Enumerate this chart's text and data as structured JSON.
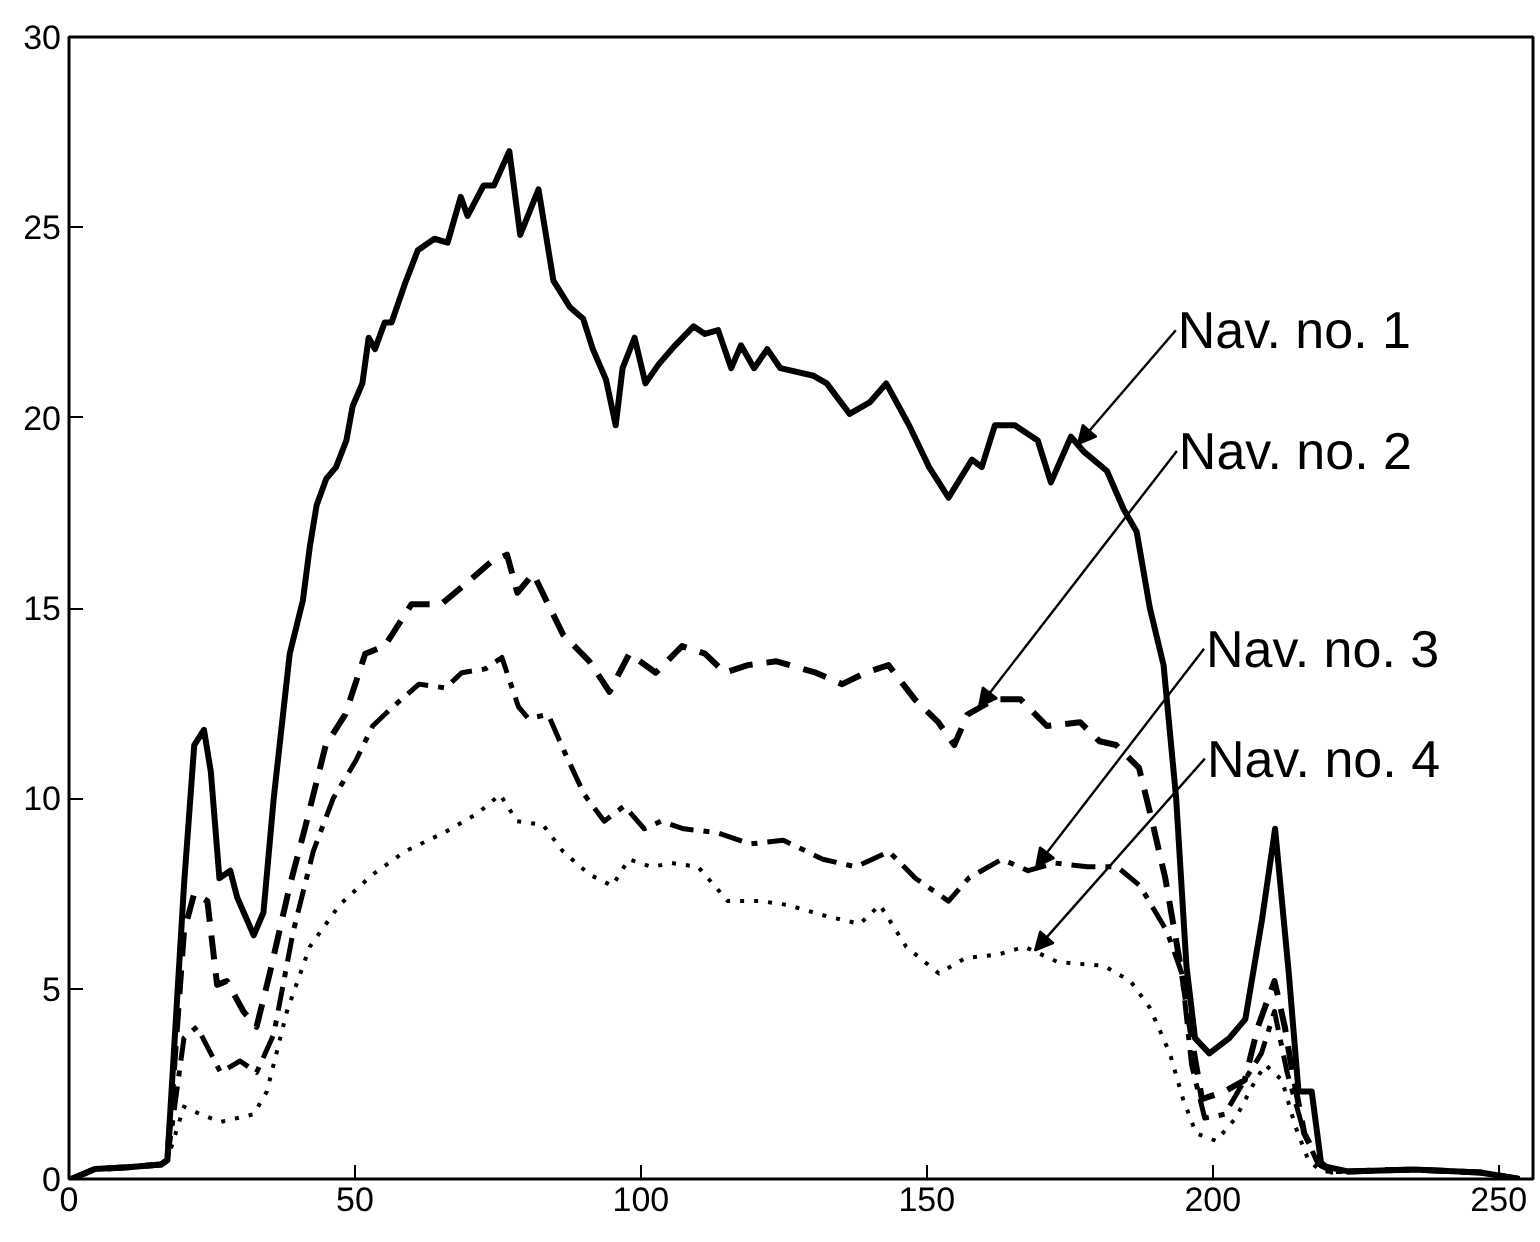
{
  "chart_data": {
    "type": "line",
    "xlim": [
      0,
      256
    ],
    "ylim": [
      0,
      30
    ],
    "xticks": [
      0,
      50,
      100,
      150,
      200,
      250
    ],
    "yticks": [
      0,
      5,
      10,
      15,
      20,
      25,
      30
    ],
    "grid": false,
    "series": [
      {
        "color": "#000000",
        "line_style": "solid",
        "x": [
          0.4,
          4.5,
          10.3,
          16.1,
          17.2,
          20.1,
          21.9,
          23.6,
          24.8,
          26.3,
          28.2,
          29.4,
          32.3,
          34.0,
          35.8,
          38.6,
          40.9,
          42.1,
          43.3,
          45.0,
          46.7,
          48.5,
          49.6,
          51.3,
          52.4,
          53.5,
          55.2,
          56.4,
          58.7,
          61.0,
          63.9,
          66.2,
          68.5,
          69.7,
          72.5,
          74.3,
          77.0,
          78.9,
          82.1,
          84.7,
          87.6,
          89.9,
          91.6,
          93.9,
          95.6,
          96.8,
          98.9,
          100.8,
          103.1,
          106.0,
          109.2,
          111.2,
          113.5,
          115.8,
          117.5,
          119.8,
          122.1,
          124.4,
          130.2,
          132.5,
          136.5,
          140.0,
          142.9,
          146.9,
          150.4,
          153.8,
          157.9,
          159.6,
          161.9,
          165.4,
          169.4,
          171.7,
          175.2,
          177.5,
          181.5,
          184.4,
          186.7,
          189.0,
          191.4,
          193.6,
          195.4,
          196.9,
          199.4,
          202.9,
          205.7,
          208.6,
          210.9,
          213.3,
          215.0,
          217.3,
          219.0,
          223.6,
          235.2,
          246.8,
          253.6
        ],
        "values": [
          0,
          0.26,
          0.31,
          0.38,
          0.5,
          7.7,
          11.4,
          11.8,
          10.7,
          7.9,
          8.1,
          7.4,
          6.4,
          7.0,
          10.0,
          13.8,
          15.2,
          16.6,
          17.7,
          18.4,
          18.7,
          19.4,
          20.3,
          20.9,
          22.1,
          21.8,
          22.5,
          22.5,
          23.5,
          24.4,
          24.7,
          24.6,
          25.8,
          25.3,
          26.1,
          26.1,
          27.0,
          24.8,
          26.0,
          23.6,
          22.9,
          22.6,
          21.8,
          21.0,
          19.8,
          21.3,
          22.1,
          20.9,
          21.4,
          21.9,
          22.4,
          22.2,
          22.3,
          21.3,
          21.9,
          21.3,
          21.8,
          21.3,
          21.1,
          20.9,
          20.1,
          20.4,
          20.9,
          19.8,
          18.7,
          17.9,
          18.9,
          18.7,
          19.8,
          19.8,
          19.4,
          18.3,
          19.5,
          19.1,
          18.6,
          17.6,
          17.0,
          15.0,
          13.5,
          10.0,
          5.6,
          3.7,
          3.3,
          3.7,
          4.2,
          6.8,
          9.2,
          5.4,
          2.3,
          2.3,
          0.35,
          0.2,
          0.25,
          0.17,
          0
        ]
      },
      {
        "color": "#000000",
        "line_style": "dashed",
        "x": [
          0.4,
          4.5,
          10.3,
          16.1,
          17.2,
          20.1,
          21.9,
          24.2,
          25.9,
          27.6,
          30.5,
          32.8,
          35.1,
          38.6,
          41.4,
          44.9,
          48.3,
          51.8,
          55.2,
          59.9,
          65.1,
          69.1,
          73.7,
          76.6,
          78.4,
          81.2,
          84.1,
          86.4,
          91.0,
          94.5,
          98.0,
          102.6,
          107.2,
          111.2,
          114.7,
          118.7,
          123.7,
          130.6,
          135.2,
          139.3,
          143.3,
          147.9,
          152.0,
          154.8,
          157.1,
          161.8,
          166.4,
          171.0,
          176.8,
          180.2,
          183.1,
          187.1,
          189.4,
          191.7,
          194.6,
          196.3,
          198.1,
          202.1,
          205.6,
          207.9,
          210.8,
          212.6,
          213.7,
          216.0,
          218.4,
          220.7,
          223.6,
          235.2,
          246.8,
          253.6
        ],
        "values": [
          0,
          0.26,
          0.31,
          0.38,
          0.5,
          6.5,
          7.5,
          7.3,
          5.1,
          5.2,
          4.4,
          4.0,
          5.4,
          7.7,
          9.3,
          11.4,
          12.2,
          13.8,
          14.0,
          15.1,
          15.1,
          15.6,
          16.2,
          16.4,
          15.4,
          15.9,
          15.0,
          14.3,
          13.6,
          12.8,
          13.8,
          13.3,
          14.0,
          13.8,
          13.3,
          13.5,
          13.6,
          13.3,
          13.0,
          13.3,
          13.5,
          12.6,
          12.0,
          11.4,
          12.2,
          12.6,
          12.6,
          11.9,
          12.0,
          11.5,
          11.4,
          10.8,
          9.4,
          7.9,
          5.4,
          3.7,
          2.1,
          2.3,
          2.6,
          4.0,
          5.2,
          4.0,
          3.0,
          1.2,
          0.5,
          0.2,
          0.2,
          0.25,
          0.17,
          0
        ]
      },
      {
        "color": "#000000",
        "line_style": "dashdot",
        "x": [
          0.4,
          4.5,
          10.3,
          16.1,
          17.2,
          20.1,
          22.4,
          26.5,
          29.9,
          32.8,
          35.8,
          39.2,
          42.7,
          46.2,
          50.2,
          53.1,
          56.6,
          61.2,
          65.8,
          68.7,
          72.8,
          75.7,
          78.6,
          80.3,
          83.8,
          86.7,
          90.1,
          93.6,
          97.1,
          100.6,
          103.5,
          107.5,
          113.3,
          119.1,
          124.9,
          131.8,
          137.6,
          143.4,
          148.0,
          153.8,
          157.3,
          163.1,
          167.7,
          172.4,
          178.1,
          183.3,
          187.3,
          192.0,
          194.6,
          196.3,
          198.6,
          202.1,
          205.6,
          208.5,
          210.8,
          213.0,
          216.0,
          218.4,
          220.7,
          223.6,
          235.2,
          246.8,
          253.6
        ],
        "values": [
          0,
          0.26,
          0.31,
          0.38,
          0.5,
          3.7,
          4.0,
          2.8,
          3.1,
          2.8,
          3.8,
          6.5,
          8.6,
          10.0,
          11.0,
          11.9,
          12.4,
          13.0,
          12.9,
          13.3,
          13.4,
          13.7,
          12.4,
          12.1,
          12.2,
          11.2,
          10.1,
          9.4,
          9.8,
          9.2,
          9.4,
          9.2,
          9.1,
          8.8,
          8.9,
          8.4,
          8.2,
          8.6,
          7.9,
          7.3,
          7.9,
          8.4,
          8.1,
          8.3,
          8.2,
          8.2,
          7.7,
          6.5,
          5.4,
          3.0,
          1.6,
          1.7,
          2.6,
          3.3,
          4.4,
          2.8,
          1.2,
          0.4,
          0.2,
          0.2,
          0.25,
          0.17,
          0
        ]
      },
      {
        "color": "#000000",
        "line_style": "dotted",
        "x": [
          0.4,
          4.5,
          10.3,
          16.1,
          17.2,
          20.1,
          23.0,
          26.5,
          32.3,
          34.6,
          38.1,
          42.1,
          47.3,
          53.1,
          58.7,
          65.6,
          71.4,
          75.4,
          78.3,
          82.9,
          86.4,
          91.0,
          95.0,
          97.9,
          101.9,
          105.4,
          110.0,
          115.2,
          121.0,
          125.6,
          132.6,
          138.3,
          141.8,
          146.4,
          152.1,
          156.7,
          162.5,
          167.1,
          172.9,
          181.0,
          185.6,
          189.0,
          192.5,
          194.8,
          197.1,
          200.6,
          204.0,
          207.5,
          209.2,
          212.1,
          214.4,
          216.7,
          219.0,
          223.6,
          235.2,
          246.8,
          253.6
        ],
        "values": [
          0,
          0.26,
          0.31,
          0.38,
          0.5,
          1.9,
          1.7,
          1.5,
          1.7,
          2.3,
          4.4,
          6.1,
          7.2,
          8.0,
          8.6,
          9.1,
          9.6,
          10.1,
          9.4,
          9.3,
          8.6,
          8.0,
          7.7,
          8.4,
          8.2,
          8.3,
          8.2,
          7.3,
          7.3,
          7.2,
          6.9,
          6.7,
          7.2,
          6.1,
          5.4,
          5.8,
          5.9,
          6.1,
          5.7,
          5.6,
          5.2,
          4.5,
          3.3,
          2.1,
          1.2,
          1.0,
          1.6,
          2.6,
          3.0,
          2.6,
          1.4,
          0.5,
          0.2,
          0.2,
          0.25,
          0.17,
          0
        ]
      }
    ],
    "annotations": [
      {
        "text": "Nav. no. 1",
        "x": 176.4,
        "y": 19.3
      },
      {
        "text": "Nav. no. 2",
        "x": 159.1,
        "y": 12.4
      },
      {
        "text": "Nav. no. 3",
        "x": 169.1,
        "y": 8.2
      },
      {
        "text": "Nav. no. 4",
        "x": 168.9,
        "y": 6.0
      }
    ]
  }
}
